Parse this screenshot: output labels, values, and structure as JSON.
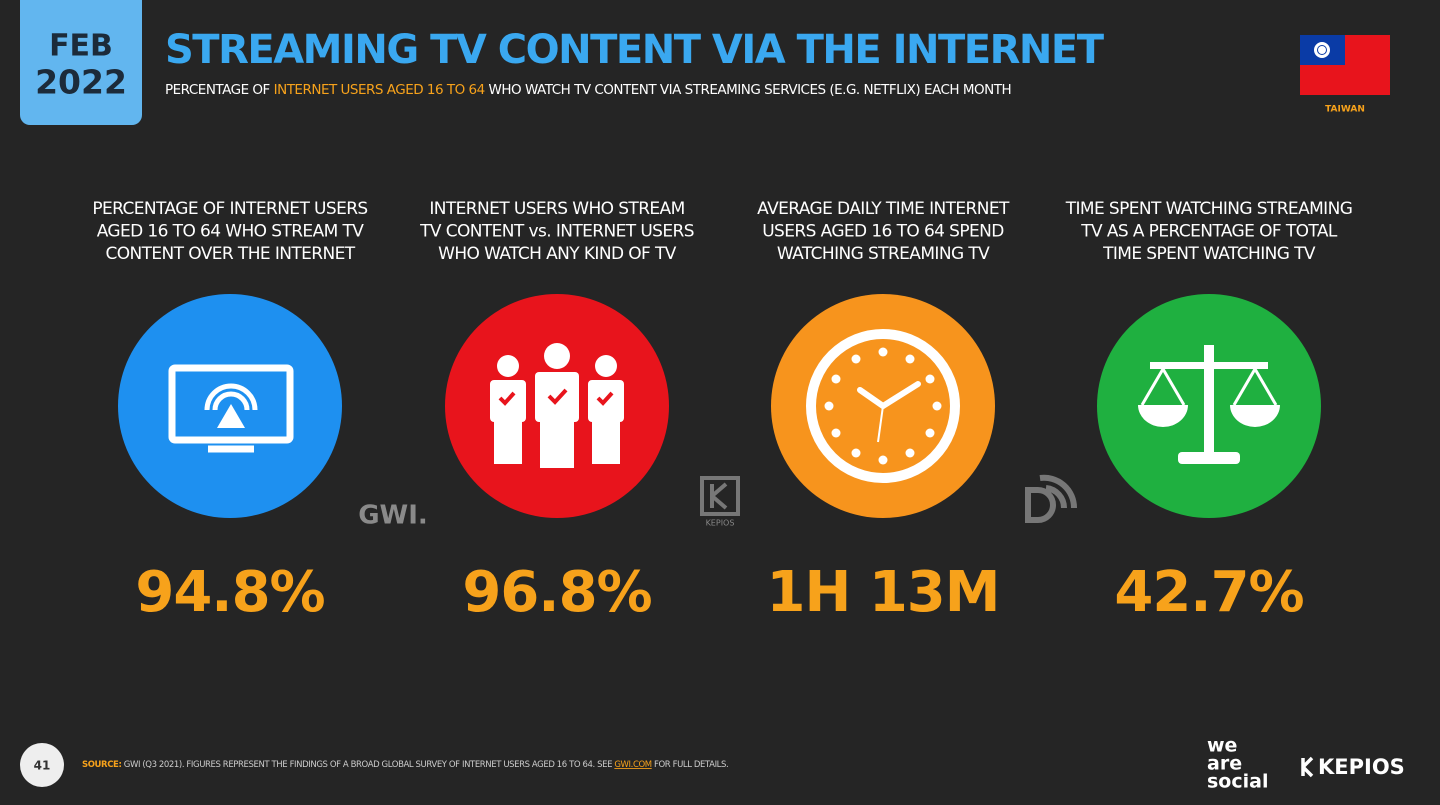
{
  "header": {
    "date": [
      "FEB",
      "2022"
    ],
    "title": "STREAMING TV CONTENT VIA THE INTERNET",
    "subtitle": [
      "PERCENTAGE OF",
      "INTERNET USERS AGED 16 TO 64",
      "WHO WATCH TV CONTENT VIA STREAMING SERVICES (E.G. NETFLIX) EACH MONTH"
    ],
    "country": "TAIWAN"
  },
  "cards": [
    {
      "label": [
        "PERCENTAGE OF INTERNET USERS",
        "AGED 16 TO 64 WHO STREAM TV",
        "CONTENT OVER THE INTERNET"
      ],
      "value": "94.8%"
    },
    {
      "label": [
        "INTERNET USERS WHO STREAM",
        "TV CONTENT vs. INTERNET USERS",
        "WHO WATCH ANY KIND OF TV"
      ],
      "value": "96.8%"
    },
    {
      "label": [
        "AVERAGE DAILY TIME INTERNET",
        "USERS AGED 16 TO 64 SPEND",
        "WATCHING STREAMING TV"
      ],
      "value": "1H 13M"
    },
    {
      "label": [
        "TIME SPENT WATCHING STREAMING",
        "TV AS A PERCENTAGE OF TOTAL",
        "TIME SPENT WATCHING TV"
      ],
      "value": "42.7%"
    }
  ],
  "watermarks": [
    "GWI.",
    "KEPIOS"
  ],
  "footer": {
    "page": "41",
    "source_label": "SOURCE:",
    "source": "GWI (Q3 2021). FIGURES REPRESENT THE FINDINGS OF A BROAD GLOBAL SURVEY OF INTERNET USERS AGED 16 TO 64. SEE",
    "link": "GWI.COM",
    "source_end": "FOR FULL DETAILS.",
    "brand1": [
      "we",
      "are",
      "social"
    ],
    "brand2": "KEPIOS"
  }
}
